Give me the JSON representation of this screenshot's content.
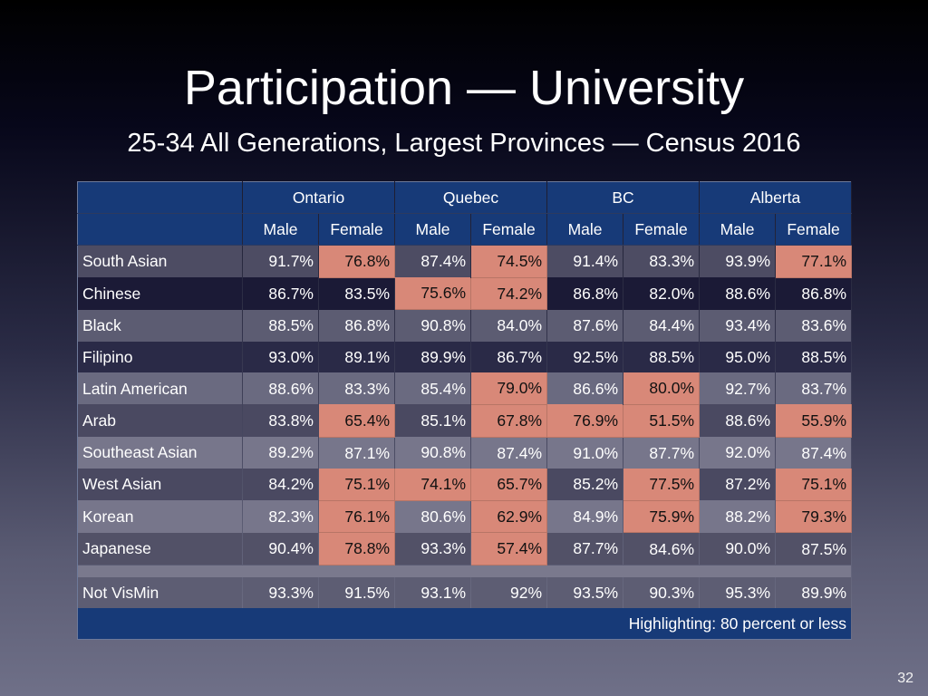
{
  "slide": {
    "title": "Participation — University",
    "subtitle": "25-34 All Generations, Largest Provinces — Census 2016",
    "page_number": "32"
  },
  "colors": {
    "header_bg": "#173a78",
    "highlight": "#d88878"
  },
  "table": {
    "provinces": [
      "Ontario",
      "Quebec",
      "BC",
      "Alberta"
    ],
    "sex_headers": [
      "Male",
      "Female",
      "Male",
      "Female",
      "Male",
      "Female",
      "Male",
      "Female"
    ],
    "highlight_threshold_percent": 80,
    "rows": [
      {
        "label": "South Asian",
        "values": [
          "91.7%",
          "76.8%",
          "87.4%",
          "74.5%",
          "91.4%",
          "83.3%",
          "93.9%",
          "77.1%"
        ],
        "highlighted": [
          false,
          true,
          false,
          true,
          false,
          false,
          false,
          true
        ]
      },
      {
        "label": "Chinese",
        "values": [
          "86.7%",
          "83.5%",
          "75.6%",
          "74.2%",
          "86.8%",
          "82.0%",
          "88.6%",
          "86.8%"
        ],
        "highlighted": [
          false,
          false,
          true,
          true,
          false,
          false,
          false,
          false
        ]
      },
      {
        "label": "Black",
        "values": [
          "88.5%",
          "86.8%",
          "90.8%",
          "84.0%",
          "87.6%",
          "84.4%",
          "93.4%",
          "83.6%"
        ],
        "highlighted": [
          false,
          false,
          false,
          false,
          false,
          false,
          false,
          false
        ]
      },
      {
        "label": "Filipino",
        "values": [
          "93.0%",
          "89.1%",
          "89.9%",
          "86.7%",
          "92.5%",
          "88.5%",
          "95.0%",
          "88.5%"
        ],
        "highlighted": [
          false,
          false,
          false,
          false,
          false,
          false,
          false,
          false
        ]
      },
      {
        "label": "Latin American",
        "values": [
          "88.6%",
          "83.3%",
          "85.4%",
          "79.0%",
          "86.6%",
          "80.0%",
          "92.7%",
          "83.7%"
        ],
        "highlighted": [
          false,
          false,
          false,
          true,
          false,
          true,
          false,
          false
        ]
      },
      {
        "label": "Arab",
        "values": [
          "83.8%",
          "65.4%",
          "85.1%",
          "67.8%",
          "76.9%",
          "51.5%",
          "88.6%",
          "55.9%"
        ],
        "highlighted": [
          false,
          true,
          false,
          true,
          true,
          true,
          false,
          true
        ]
      },
      {
        "label": "Southeast Asian",
        "values": [
          "89.2%",
          "87.1%",
          "90.8%",
          "87.4%",
          "91.0%",
          "87.7%",
          "92.0%",
          "87.4%"
        ],
        "highlighted": [
          false,
          false,
          false,
          false,
          false,
          false,
          false,
          false
        ]
      },
      {
        "label": "West Asian",
        "values": [
          "84.2%",
          "75.1%",
          "74.1%",
          "65.7%",
          "85.2%",
          "77.5%",
          "87.2%",
          "75.1%"
        ],
        "highlighted": [
          false,
          true,
          true,
          true,
          false,
          true,
          false,
          true
        ]
      },
      {
        "label": "Korean",
        "values": [
          "82.3%",
          "76.1%",
          "80.6%",
          "62.9%",
          "84.9%",
          "75.9%",
          "88.2%",
          "79.3%"
        ],
        "highlighted": [
          false,
          true,
          false,
          true,
          false,
          true,
          false,
          true
        ]
      },
      {
        "label": "Japanese",
        "values": [
          "90.4%",
          "78.8%",
          "93.3%",
          "57.4%",
          "87.7%",
          "84.6%",
          "90.0%",
          "87.5%"
        ],
        "highlighted": [
          false,
          true,
          false,
          true,
          false,
          false,
          false,
          false
        ]
      }
    ],
    "reference_row": {
      "label": "Not VisMin",
      "values": [
        "93.3%",
        "91.5%",
        "93.1%",
        "92%",
        "93.5%",
        "90.3%",
        "95.3%",
        "89.9%"
      ]
    },
    "footer_note": "Highlighting: 80 percent or less"
  }
}
